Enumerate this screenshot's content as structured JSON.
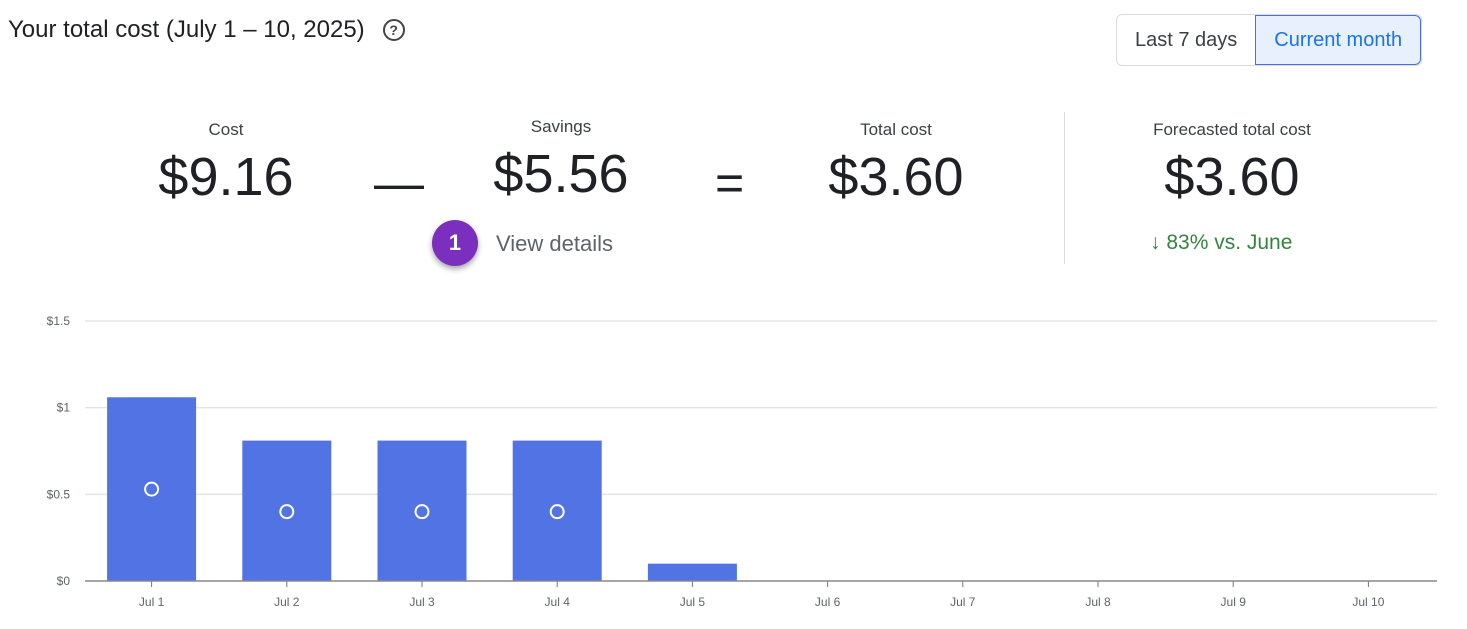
{
  "header": {
    "title": "Your total cost (July 1 – 10, 2025)",
    "help_icon": "help-circle-icon"
  },
  "range_toggle": {
    "options": [
      "Last 7 days",
      "Current month"
    ],
    "selected": "Current month"
  },
  "summary": {
    "cost": {
      "label": "Cost",
      "value": "$9.16"
    },
    "minus": "—",
    "savings": {
      "label": "Savings",
      "value": "$5.56",
      "link": "View details"
    },
    "equals": "=",
    "total": {
      "label": "Total cost",
      "value": "$3.60"
    },
    "forecast": {
      "label": "Forecasted total cost",
      "value": "$3.60",
      "trend": "83% vs. June",
      "trend_icon": "arrow-down-icon",
      "trend_color": "#34843f"
    }
  },
  "annotation": {
    "badge": "1",
    "color": "#7b2fbe"
  },
  "chart_data": {
    "type": "bar",
    "categories": [
      "Jul 1",
      "Jul 2",
      "Jul 3",
      "Jul 4",
      "Jul 5",
      "Jul 6",
      "Jul 7",
      "Jul 8",
      "Jul 9",
      "Jul 10"
    ],
    "values": [
      1.06,
      0.81,
      0.81,
      0.81,
      0.1,
      0,
      0,
      0,
      0,
      0
    ],
    "markers": [
      0.53,
      0.4,
      0.4,
      0.4,
      null,
      null,
      null,
      null,
      null,
      null
    ],
    "yticks": [
      "$0",
      "$0.5",
      "$1",
      "$1.5"
    ],
    "ytick_values": [
      0,
      0.5,
      1,
      1.5
    ],
    "ylim": [
      0,
      1.5
    ],
    "grid": true,
    "bar_color": "#5273e3"
  }
}
